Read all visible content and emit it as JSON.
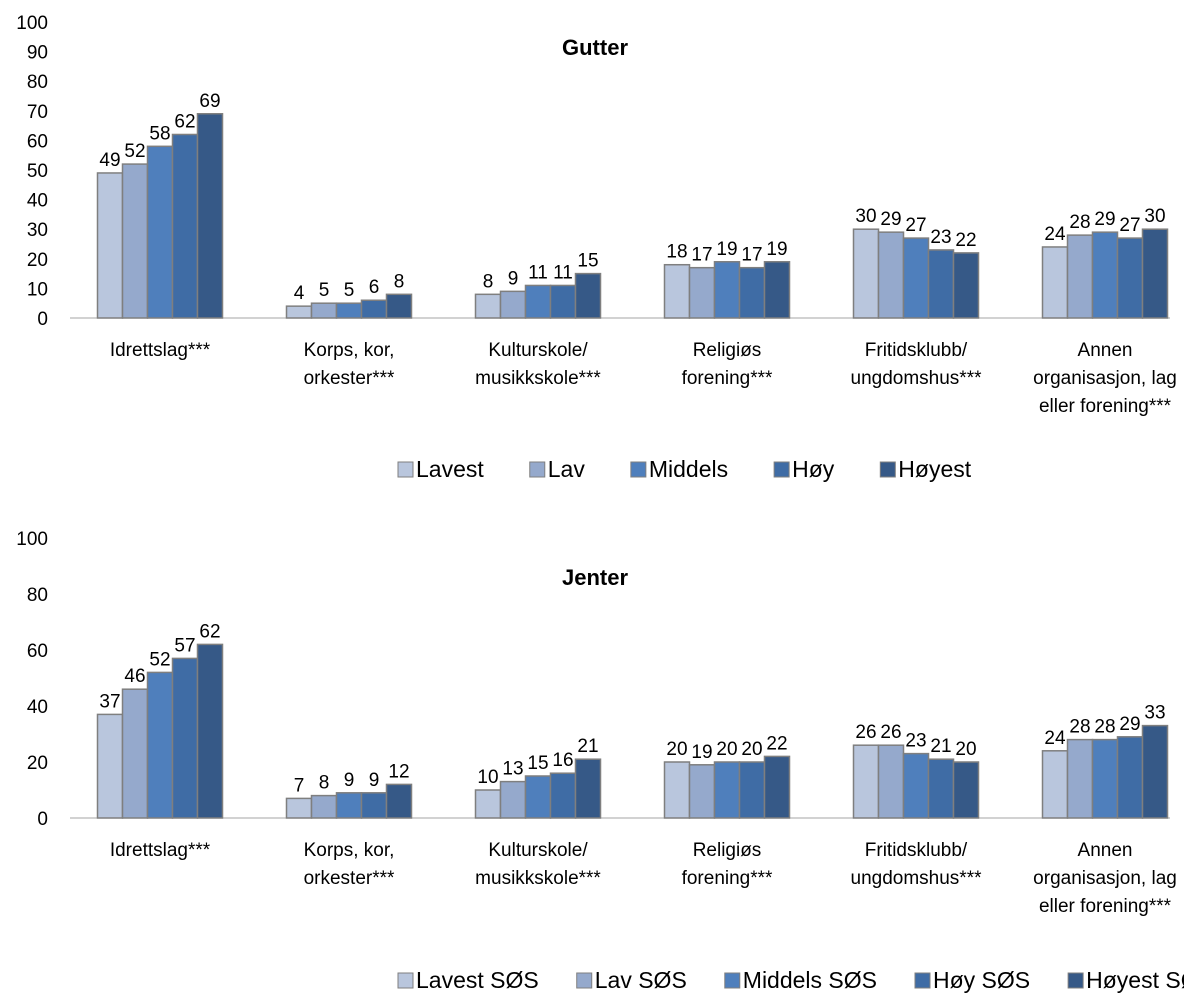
{
  "chart_data": [
    {
      "type": "bar",
      "title": "Gutter",
      "xlabel": "",
      "ylabel": "",
      "ylim": [
        0,
        100
      ],
      "yticks": [
        0,
        10,
        20,
        30,
        40,
        50,
        60,
        70,
        80,
        90,
        100
      ],
      "categories": [
        [
          "Idrettslag***"
        ],
        [
          "Korps, kor,",
          "orkester***"
        ],
        [
          "Kulturskole/",
          "musikkskole***"
        ],
        [
          "Religiøs",
          "forening***"
        ],
        [
          "Fritidsklubb/",
          "ungdomshus***"
        ],
        [
          "Annen",
          "organisasjon, lag",
          "eller forening***"
        ]
      ],
      "series": [
        {
          "name": "Lavest",
          "color": "#b9c6dd",
          "values": [
            49,
            4,
            8,
            18,
            30,
            24
          ]
        },
        {
          "name": "Lav",
          "color": "#95a9cc",
          "values": [
            52,
            5,
            9,
            17,
            29,
            28
          ]
        },
        {
          "name": "Middels",
          "color": "#4f7fbc",
          "values": [
            58,
            5,
            11,
            19,
            27,
            29
          ]
        },
        {
          "name": "Høy",
          "color": "#3f6ca5",
          "values": [
            62,
            6,
            11,
            17,
            23,
            27
          ]
        },
        {
          "name": "Høyest",
          "color": "#365987",
          "values": [
            69,
            8,
            15,
            19,
            22,
            30
          ]
        }
      ],
      "legend": "bottom",
      "grid": false
    },
    {
      "type": "bar",
      "title": "Jenter",
      "xlabel": "",
      "ylabel": "",
      "ylim": [
        0,
        100
      ],
      "yticks": [
        0,
        20,
        40,
        60,
        80,
        100
      ],
      "categories": [
        [
          "Idrettslag***"
        ],
        [
          "Korps, kor,",
          "orkester***"
        ],
        [
          "Kulturskole/",
          "musikkskole***"
        ],
        [
          "Religiøs",
          "forening***"
        ],
        [
          "Fritidsklubb/",
          "ungdomshus***"
        ],
        [
          "Annen",
          "organisasjon, lag",
          "eller forening***"
        ]
      ],
      "series": [
        {
          "name": "Lavest SØS",
          "color": "#b9c6dd",
          "values": [
            37,
            7,
            10,
            20,
            26,
            24
          ]
        },
        {
          "name": "Lav SØS",
          "color": "#95a9cc",
          "values": [
            46,
            8,
            13,
            19,
            26,
            28
          ]
        },
        {
          "name": "Middels SØS",
          "color": "#4f7fbc",
          "values": [
            52,
            9,
            15,
            20,
            23,
            28
          ]
        },
        {
          "name": "Høy SØS",
          "color": "#3f6ca5",
          "values": [
            57,
            9,
            16,
            20,
            21,
            29
          ]
        },
        {
          "name": "Høyest SØS",
          "color": "#365987",
          "values": [
            62,
            12,
            21,
            22,
            20,
            33
          ]
        }
      ],
      "legend": "bottom",
      "grid": false
    }
  ]
}
